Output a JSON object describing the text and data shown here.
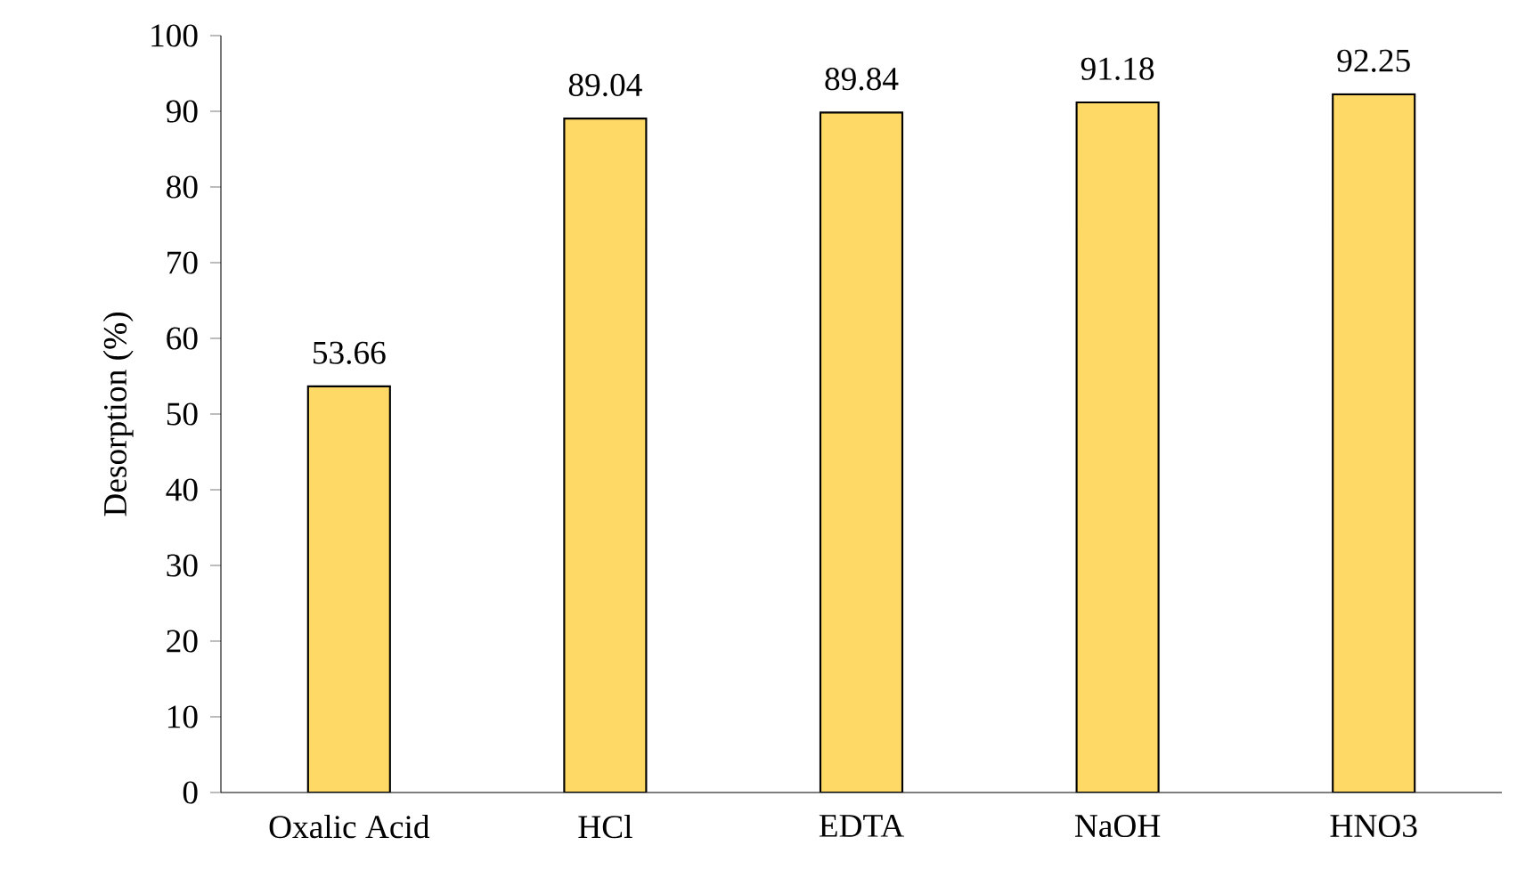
{
  "chart_data": {
    "type": "bar",
    "ylabel": "Desorption (%)",
    "categories": [
      "Oxalic Acid",
      "HCl",
      "EDTA",
      "NaOH",
      "HNO3"
    ],
    "values": [
      53.66,
      89.04,
      89.84,
      91.18,
      92.25
    ],
    "color": "#ffd966",
    "ylim": [
      0,
      100
    ],
    "yticks": [
      0,
      10,
      20,
      30,
      40,
      50,
      60,
      70,
      80,
      90,
      100
    ],
    "data_labels": true
  }
}
